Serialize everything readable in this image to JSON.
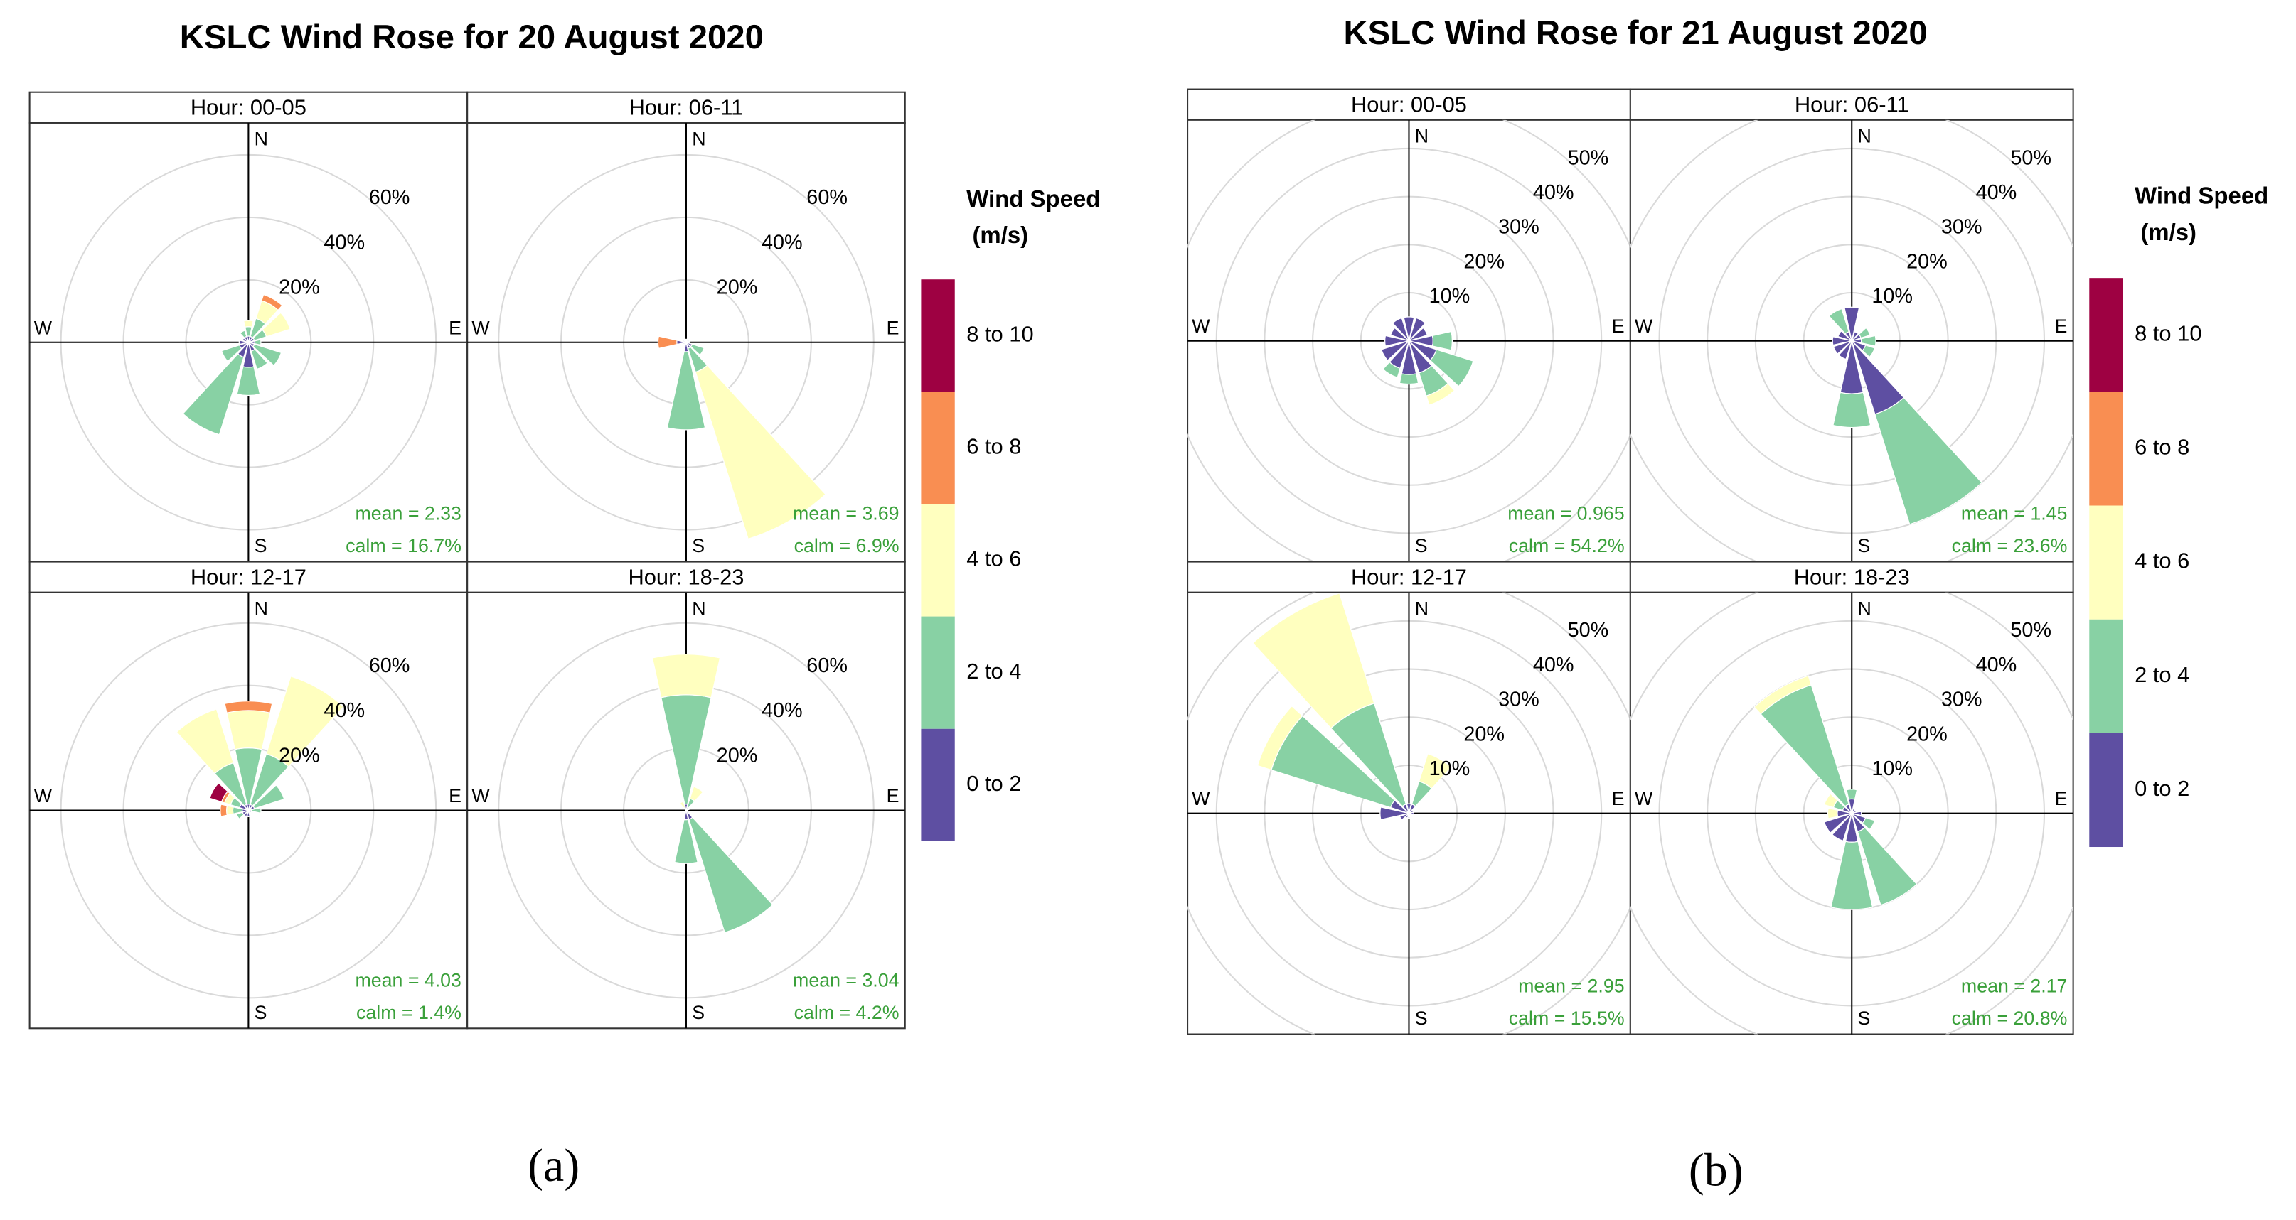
{
  "chart_data": [
    {
      "type": "wind_rose",
      "title": "KSLC Wind Rose for 20 August 2020",
      "caption": "(a)",
      "legend_title": "Wind Speed",
      "legend_units": "(m/s)",
      "series": [
        {
          "name": "0 to 2",
          "color": "#5e4fa2"
        },
        {
          "name": "2 to 4",
          "color": "#88d1a4"
        },
        {
          "name": "4 to 6",
          "color": "#ffffbf"
        },
        {
          "name": "6 to 8",
          "color": "#f98e52"
        },
        {
          "name": "8 to 10",
          "color": "#9e0142"
        }
      ],
      "compass_labels": [
        "N",
        "E",
        "S",
        "W"
      ],
      "directions": [
        0,
        30,
        60,
        90,
        120,
        150,
        180,
        210,
        240,
        270,
        300,
        330
      ],
      "rlim": [
        0,
        70
      ],
      "rticks": [
        {
          "value": 20,
          "label": "20%"
        },
        {
          "value": 40,
          "label": "40%"
        },
        {
          "value": 60,
          "label": "60%"
        }
      ],
      "panels": [
        {
          "title": "Hour: 00-05",
          "mean": "mean = 2.33",
          "calm": "calm = 16.7%",
          "values": [
            [
              2,
              2,
              2,
              2,
              2,
              3,
              8,
              5,
              3,
              3,
              2,
              2
            ],
            [
              3,
              6,
              4,
              2,
              9,
              6,
              9,
              26,
              6,
              0,
              0,
              2
            ],
            [
              2,
              6,
              8,
              0,
              0,
              0,
              0,
              0,
              0,
              0,
              0,
              0
            ],
            [
              0,
              2,
              0,
              0,
              0,
              0,
              0,
              0,
              0,
              0,
              0,
              0
            ],
            [
              0,
              0,
              0,
              0,
              0,
              0,
              0,
              0,
              0,
              0,
              0,
              0
            ]
          ]
        },
        {
          "title": "Hour: 06-11",
          "mean": "mean = 3.69",
          "calm": "calm = 6.9%",
          "values": [
            [
              1,
              1,
              1,
              1,
              2,
              2,
              3,
              1,
              1,
              3,
              1,
              1
            ],
            [
              0,
              0,
              0,
              0,
              4,
              8,
              25,
              0,
              0,
              0,
              0,
              0
            ],
            [
              0,
              0,
              0,
              0,
              0,
              56,
              0,
              0,
              0,
              0,
              0,
              0
            ],
            [
              0,
              0,
              0,
              0,
              0,
              0,
              0,
              0,
              0,
              6,
              0,
              0
            ],
            [
              0,
              0,
              0,
              0,
              0,
              0,
              0,
              0,
              0,
              0,
              0,
              0
            ]
          ]
        },
        {
          "title": "Hour: 12-17",
          "mean": "mean = 4.03",
          "calm": "calm = 1.4%",
          "values": [
            [
              2,
              2,
              2,
              1,
              1,
              1,
              2,
              2,
              2,
              2,
              3,
              2
            ],
            [
              18,
              17,
              10,
              3,
              0,
              0,
              0,
              0,
              2,
              3,
              3,
              14
            ],
            [
              12,
              26,
              0,
              0,
              0,
              0,
              0,
              0,
              0,
              2,
              2,
              18
            ],
            [
              3,
              0,
              0,
              0,
              0,
              0,
              0,
              0,
              0,
              2,
              1,
              0
            ],
            [
              0,
              0,
              0,
              0,
              0,
              0,
              0,
              0,
              0,
              0,
              4,
              0
            ]
          ]
        },
        {
          "title": "Hour: 18-23",
          "mean": "mean = 3.04",
          "calm": "calm = 4.2%",
          "values": [
            [
              2,
              1,
              1,
              0,
              1,
              3,
              3,
              1,
              0,
              0,
              0,
              1
            ],
            [
              35,
              3,
              0,
              0,
              0,
              38,
              14,
              0,
              0,
              0,
              0,
              0
            ],
            [
              13,
              4,
              0,
              0,
              0,
              0,
              0,
              0,
              0,
              0,
              0,
              2
            ],
            [
              0,
              0,
              0,
              0,
              0,
              0,
              0,
              0,
              0,
              0,
              0,
              0
            ],
            [
              0,
              0,
              0,
              0,
              0,
              0,
              0,
              0,
              0,
              0,
              0,
              0
            ]
          ]
        }
      ]
    },
    {
      "type": "wind_rose",
      "title": "KSLC Wind Rose for 21 August 2020",
      "caption": "(b)",
      "legend_title": "Wind Speed",
      "legend_units": "(m/s)",
      "series": [
        {
          "name": "0 to 2",
          "color": "#5e4fa2"
        },
        {
          "name": "2 to 4",
          "color": "#88d1a4"
        },
        {
          "name": "4 to 6",
          "color": "#ffffbf"
        },
        {
          "name": "6 to 8",
          "color": "#f98e52"
        },
        {
          "name": "8 to 10",
          "color": "#9e0142"
        }
      ],
      "compass_labels": [
        "N",
        "E",
        "S",
        "W"
      ],
      "directions": [
        0,
        30,
        60,
        90,
        120,
        150,
        180,
        210,
        240,
        270,
        300,
        330
      ],
      "rlim": [
        0,
        46
      ],
      "rticks": [
        {
          "value": 10,
          "label": "10%"
        },
        {
          "value": 20,
          "label": "20%"
        },
        {
          "value": 30,
          "label": "30%"
        },
        {
          "value": 40,
          "label": "40%"
        },
        {
          "value": 50,
          "label": "50%"
        }
      ],
      "panels": [
        {
          "title": "Hour: 00-05",
          "mean": "mean = 0.965",
          "calm": "calm = 54.2%",
          "values": [
            [
              5,
              5,
              4,
              5,
              6,
              7,
              7,
              6,
              6,
              5,
              4,
              5
            ],
            [
              0,
              0,
              0,
              4,
              8,
              5,
              2,
              2,
              0,
              0,
              0,
              0
            ],
            [
              0,
              0,
              0,
              0,
              0,
              2,
              0,
              0,
              0,
              0,
              0,
              0
            ],
            [
              0,
              0,
              0,
              0,
              0,
              0,
              0,
              0,
              0,
              0,
              0,
              0
            ],
            [
              0,
              0,
              0,
              0,
              0,
              0,
              0,
              0,
              0,
              0,
              0,
              0
            ]
          ]
        },
        {
          "title": "Hour: 06-11",
          "mean": "mean = 1.45",
          "calm": "calm = 23.6%",
          "values": [
            [
              7,
              2,
              2,
              2,
              3,
              16,
              11,
              4,
              4,
              4,
              3,
              2
            ],
            [
              0,
              0,
              2,
              3,
              2,
              24,
              7,
              0,
              0,
              0,
              0,
              5
            ],
            [
              0,
              0,
              0,
              0,
              0,
              0,
              0,
              0,
              0,
              0,
              0,
              0
            ],
            [
              0,
              0,
              0,
              0,
              0,
              0,
              0,
              0,
              0,
              0,
              0,
              0
            ],
            [
              0,
              0,
              0,
              0,
              0,
              0,
              0,
              0,
              0,
              0,
              0,
              0
            ]
          ]
        },
        {
          "title": "Hour: 12-17",
          "mean": "mean = 2.95",
          "calm": "calm = 15.5%",
          "values": [
            [
              2,
              2,
              1,
              1,
              0,
              0,
              1,
              1,
              2,
              6,
              4,
              2
            ],
            [
              0,
              5,
              0,
              0,
              0,
              0,
              0,
              0,
              0,
              0,
              26,
              22
            ],
            [
              0,
              6,
              0,
              0,
              0,
              0,
              0,
              0,
              0,
              0,
              3,
              24
            ],
            [
              0,
              0,
              0,
              0,
              0,
              0,
              0,
              0,
              0,
              0,
              0,
              0
            ],
            [
              0,
              0,
              0,
              0,
              0,
              0,
              0,
              0,
              0,
              0,
              0,
              0
            ]
          ]
        },
        {
          "title": "Hour: 18-23",
          "mean": "mean = 2.17",
          "calm": "calm = 20.8%",
          "values": [
            [
              3,
              1,
              1,
              2,
              3,
              4,
              6,
              6,
              6,
              3,
              2,
              2
            ],
            [
              2,
              0,
              0,
              0,
              2,
              16,
              14,
              0,
              0,
              0,
              2,
              26
            ],
            [
              0,
              0,
              0,
              0,
              0,
              0,
              0,
              0,
              0,
              2,
              2,
              2
            ],
            [
              0,
              0,
              0,
              0,
              0,
              0,
              0,
              0,
              0,
              0,
              0,
              0
            ],
            [
              0,
              0,
              0,
              0,
              0,
              0,
              0,
              0,
              0,
              0,
              0,
              0
            ]
          ]
        }
      ]
    }
  ]
}
